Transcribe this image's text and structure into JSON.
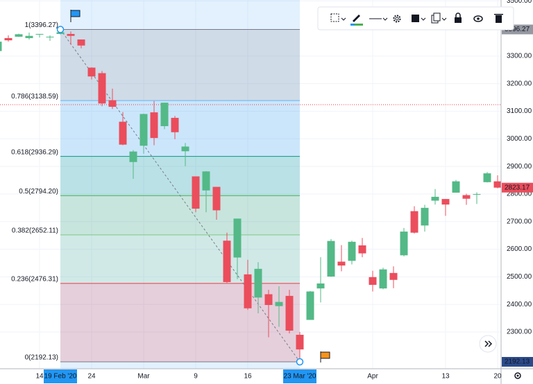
{
  "chart_data": {
    "type": "candlestick",
    "x": [
      "2020-02-10",
      "2020-02-11",
      "2020-02-12",
      "2020-02-13",
      "2020-02-14",
      "2020-02-18",
      "2020-02-19",
      "2020-02-20",
      "2020-02-21",
      "2020-02-24",
      "2020-02-25",
      "2020-02-26",
      "2020-02-27",
      "2020-02-28",
      "2020-03-02",
      "2020-03-03",
      "2020-03-04",
      "2020-03-05",
      "2020-03-06",
      "2020-03-09",
      "2020-03-10",
      "2020-03-11",
      "2020-03-12",
      "2020-03-13",
      "2020-03-16",
      "2020-03-17",
      "2020-03-18",
      "2020-03-19",
      "2020-03-20",
      "2020-03-23",
      "2020-03-24",
      "2020-03-25",
      "2020-03-26",
      "2020-03-27",
      "2020-03-30",
      "2020-03-31",
      "2020-04-01",
      "2020-04-02",
      "2020-04-03",
      "2020-04-06",
      "2020-04-07",
      "2020-04-08",
      "2020-04-09",
      "2020-04-13",
      "2020-04-14",
      "2020-04-15",
      "2020-04-16",
      "2020-04-17",
      "2020-04-20"
    ],
    "open": [
      3318,
      3365,
      3370,
      3365,
      3378,
      3369,
      3380,
      3380,
      3360,
      3258,
      3238,
      3140,
      3062,
      2916,
      2975,
      3096,
      3046,
      3076,
      2955,
      2864,
      2813,
      2826,
      2631,
      2570,
      2509,
      2425,
      2437,
      2394,
      2431,
      2290,
      2344,
      2458,
      2501,
      2555,
      2558,
      2614,
      2499,
      2458,
      2514,
      2578,
      2738,
      2686,
      2776,
      2782,
      2805,
      2796,
      2800,
      2843,
      2846
    ],
    "high": [
      3352,
      3375,
      3381,
      3385,
      3380,
      3375,
      3393,
      3389,
      3360,
      3259,
      3246,
      3182,
      3097,
      2959,
      3091,
      3137,
      3131,
      3083,
      2985,
      2863,
      2883,
      2826,
      2660,
      2711,
      2562,
      2553,
      2453,
      2466,
      2453,
      2300,
      2449,
      2571,
      2637,
      2615,
      2631,
      2641,
      2522,
      2533,
      2538,
      2677,
      2756,
      2761,
      2818,
      2782,
      2851,
      2801,
      2806,
      2880,
      2868
    ],
    "low": [
      3317,
      3352,
      3369,
      3360,
      3367,
      3355,
      3378,
      3341,
      3328,
      3215,
      3118,
      3108,
      2977,
      2855,
      2946,
      2977,
      3035,
      2999,
      2901,
      2734,
      2734,
      2707,
      2478,
      2492,
      2380,
      2368,
      2281,
      2319,
      2295,
      2192,
      2344,
      2407,
      2500,
      2520,
      2545,
      2571,
      2447,
      2455,
      2459,
      2574,
      2657,
      2664,
      2762,
      2721,
      2805,
      2761,
      2764,
      2842,
      2821
    ],
    "close": [
      3352,
      3357,
      3379,
      3373,
      3380,
      3370,
      3386,
      3373,
      3338,
      3226,
      3128,
      3116,
      2979,
      2954,
      3090,
      3003,
      3131,
      3024,
      2972,
      2747,
      2882,
      2741,
      2481,
      2711,
      2386,
      2529,
      2398,
      2409,
      2305,
      2237,
      2447,
      2476,
      2630,
      2541,
      2627,
      2585,
      2471,
      2527,
      2489,
      2664,
      2660,
      2750,
      2790,
      2762,
      2846,
      2783,
      2800,
      2875,
      2823.17
    ],
    "up_color": "#53b987",
    "down_color": "#eb4d5c",
    "ylim": [
      2167,
      3503
    ],
    "yticks": [
      {
        "value": 3500,
        "label": "3500.00"
      },
      {
        "value": 3300,
        "label": "3300.00"
      },
      {
        "value": 3200,
        "label": "3200.00"
      },
      {
        "value": 3100,
        "label": "3100.00"
      },
      {
        "value": 3000,
        "label": "3000.00"
      },
      {
        "value": 2900,
        "label": "2900.00"
      },
      {
        "value": 2800,
        "label": "2800.00"
      },
      {
        "value": 2700,
        "label": "2700.00"
      },
      {
        "value": 2600,
        "label": "2600.00"
      },
      {
        "value": 2500,
        "label": "2500.00"
      },
      {
        "value": 2400,
        "label": "2400.00"
      },
      {
        "value": 2300,
        "label": "2300.00"
      }
    ],
    "xticks": [
      {
        "value": "2020-02-14",
        "label": "14"
      },
      {
        "value": "2020-02-24",
        "label": "24"
      },
      {
        "value": "2020-03-02",
        "label": "Mar"
      },
      {
        "value": "2020-03-09",
        "label": "9"
      },
      {
        "value": "2020-03-16",
        "label": "16"
      },
      {
        "value": "2020-04-01",
        "label": "Apr"
      },
      {
        "value": "2020-04-13",
        "label": "13"
      },
      {
        "value": "2020-04-20",
        "label": "20"
      }
    ],
    "grid": true,
    "last_price": {
      "value": 2823.17,
      "label": "2823.17",
      "color": "#eb4d5c"
    },
    "fib": {
      "start": {
        "value": "2020-02-19",
        "label": "19 Feb '20"
      },
      "end": {
        "value": "2020-03-23",
        "label": "23 Mar '20"
      },
      "levels": [
        {
          "price": 3396.27,
          "label": "1(3396.27)",
          "color": "#787b86"
        },
        {
          "price": 3138.59,
          "label": "0.786(3138.59)",
          "color": "#64b5f6"
        },
        {
          "price": 2936.29,
          "label": "0.618(2936.29)",
          "color": "#089981"
        },
        {
          "price": 2794.2,
          "label": "0.5(2794.20)",
          "color": "#4caf50"
        },
        {
          "price": 2652.11,
          "label": "0.382(2652.11)",
          "color": "#81c784"
        },
        {
          "price": 2476.31,
          "label": "0.236(2476.31)",
          "color": "#f23645"
        },
        {
          "price": 2192.13,
          "label": "0(2192.13)",
          "color": "#787b86"
        }
      ]
    }
  }
}
